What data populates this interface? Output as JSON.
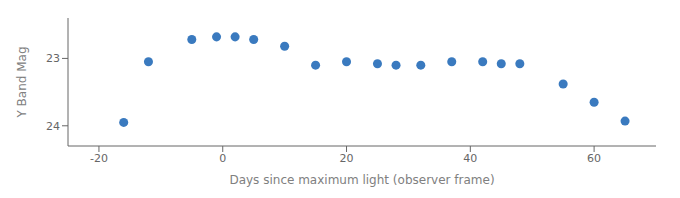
{
  "chart_data": {
    "type": "scatter",
    "x": [
      -16,
      -12,
      -5,
      -1,
      2,
      5,
      10,
      15,
      20,
      25,
      28,
      32,
      37,
      42,
      45,
      48,
      55,
      60,
      65
    ],
    "values": [
      23.95,
      23.05,
      22.72,
      22.68,
      22.68,
      22.72,
      22.82,
      23.1,
      23.05,
      23.08,
      23.1,
      23.1,
      23.05,
      23.05,
      23.08,
      23.08,
      23.38,
      23.65,
      23.93
    ],
    "color": "#3a7abf",
    "xlabel": "Days since maximum light (observer frame)",
    "ylabel": "Y Band Mag",
    "xlim": [
      -25,
      70
    ],
    "ylim": [
      24.3,
      22.4
    ],
    "xticks": [
      -20,
      0,
      20,
      40,
      60
    ],
    "yticks": [
      23,
      24
    ],
    "grid": false
  }
}
